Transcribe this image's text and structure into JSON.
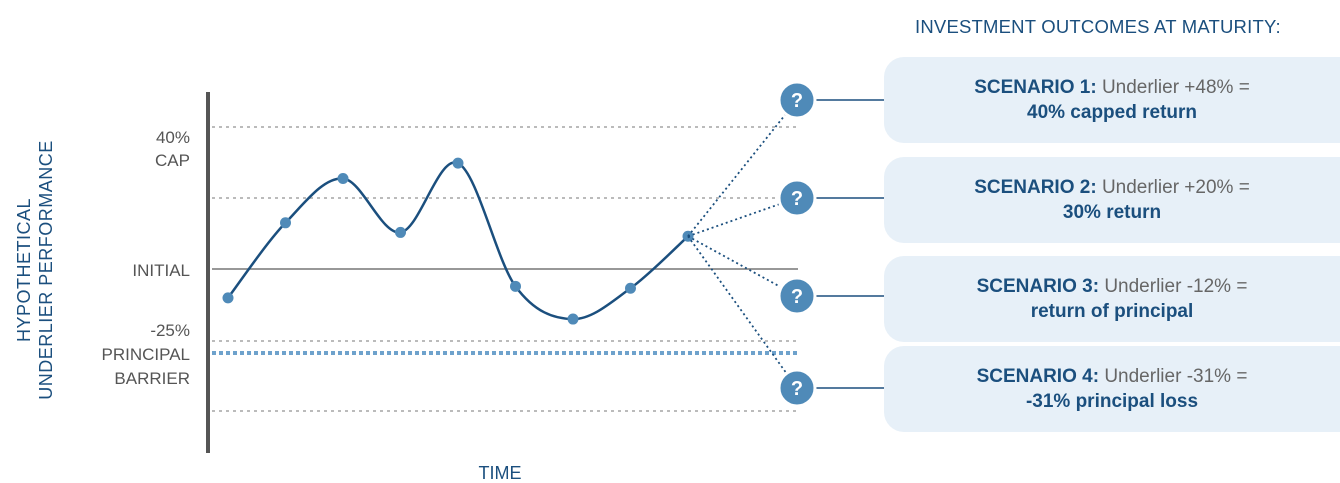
{
  "header": {
    "outcomes_title": "INVESTMENT OUTCOMES AT MATURITY:"
  },
  "axes": {
    "y_label_line1": "HYPOTHETICAL",
    "y_label_line2": "UNDERLIER PERFORMANCE",
    "x_label": "TIME"
  },
  "levels": {
    "cap_pct": "40%",
    "cap_label": "CAP",
    "initial_label": "INITIAL",
    "barrier_pct": "-25%",
    "barrier_label_1": "PRINCIPAL",
    "barrier_label_2": "BARRIER"
  },
  "path_levels": [
    -0.75,
    1.2,
    2.35,
    0.95,
    2.75,
    -0.45,
    -1.3,
    -0.5,
    0.85
  ],
  "question_glyph": "?",
  "icons": {
    "scenario_marker": "question-circle-icon"
  },
  "colors": {
    "navy": "#1b4f7e",
    "marker": "#4f8ab8",
    "card_bg": "#e7f0f8",
    "grid": "#bbbbbb",
    "barrier": "#6ea2cc"
  },
  "scenarios": [
    {
      "title": "SCENARIO 1:",
      "desc": "Underlier +48% =",
      "outcome": "40% capped return"
    },
    {
      "title": "SCENARIO 2:",
      "desc": "Underlier +20% =",
      "outcome": "30% return"
    },
    {
      "title": "SCENARIO 3:",
      "desc": "Underlier -12% =",
      "outcome": "return of principal"
    },
    {
      "title": "SCENARIO 4:",
      "desc": "Underlier -31% =",
      "outcome": "-31% principal loss"
    }
  ]
}
